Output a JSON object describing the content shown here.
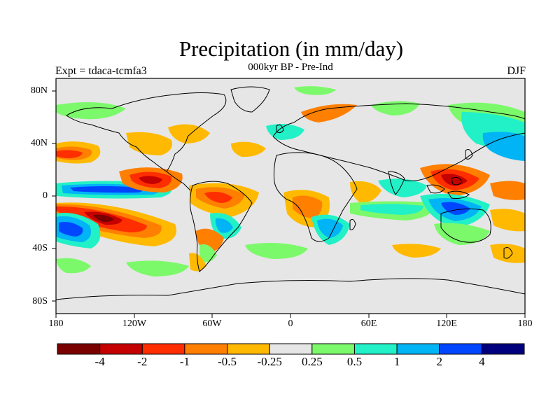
{
  "title": "Precipitation (in mm/day)",
  "subtitle": "000kyr BP - Pre-Ind",
  "left_label": "Expt = tdaca-tcmfa3",
  "right_label": "DJF",
  "lat_ticks": [
    "80N",
    "40N",
    "0",
    "40S",
    "80S"
  ],
  "lon_ticks": [
    "180",
    "120W",
    "60W",
    "0",
    "60E",
    "120E",
    "180"
  ],
  "colorbar": {
    "colors": [
      "#7a0000",
      "#c40000",
      "#ff2e00",
      "#ff7f00",
      "#ffb900",
      "#e6e6e6",
      "#7cf96b",
      "#22f0c7",
      "#00b4f5",
      "#0046ff",
      "#00007f"
    ],
    "labels": [
      "-4",
      "-2",
      "-1",
      "-0.5",
      "-0.25",
      "0.25",
      "0.5",
      "1",
      "2",
      "4"
    ]
  }
}
